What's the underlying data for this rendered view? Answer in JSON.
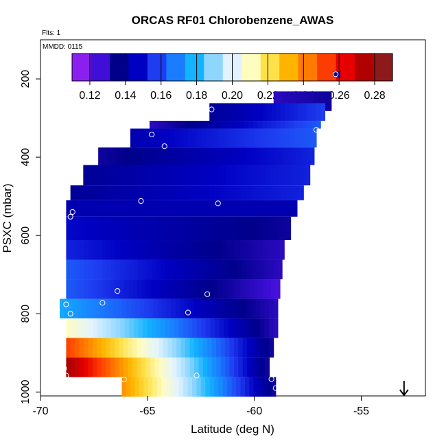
{
  "chart_data": {
    "type": "heatmap",
    "title": "ORCAS RF01 Chlorobenzene_AWAS",
    "subtitle_flights": "Flts: 1",
    "subtitle_date": "MMDD: 0115",
    "xlabel": "Latitude (deg N)",
    "ylabel": "PSXC (mbar)",
    "xlim": [
      -70,
      -52
    ],
    "ylim": [
      1010,
      100
    ],
    "x_ticks": [
      -70,
      -65,
      -60,
      -55
    ],
    "x_tick_labels": [
      "-70",
      "-65",
      "-60",
      "-55"
    ],
    "y_ticks": [
      200,
      400,
      600,
      800,
      1000
    ],
    "y_tick_labels": [
      "200",
      "400",
      "600",
      "800",
      "1000"
    ],
    "colorbar": {
      "range": [
        0.11,
        0.29
      ],
      "ticks": [
        0.12,
        0.14,
        0.16,
        0.18,
        0.2,
        0.22,
        0.24,
        0.26,
        0.28
      ],
      "tick_labels": [
        "0.12",
        "0.14",
        "0.16",
        "0.18",
        "0.20",
        "0.22",
        "0.24",
        "0.26",
        "0.28"
      ],
      "colors": [
        "#8b20ee",
        "#3f0fd8",
        "#00008b",
        "#0000c2",
        "#1e3cf0",
        "#1a7cff",
        "#12b3ff",
        "#8fd6ff",
        "#e2f3ff",
        "#fffcc0",
        "#ffe24a",
        "#ffb400",
        "#ff7a00",
        "#ff3c00",
        "#e60000",
        "#b10000",
        "#8c1a1a"
      ]
    },
    "bands": [
      {
        "p0": 180,
        "p1": 195,
        "lat0": -56.3,
        "lat1": -56.0,
        "v0": 0.13,
        "v1": 0.13
      },
      {
        "p0": 232,
        "p1": 282,
        "lat0": -59.1,
        "lat1": -56.4,
        "v0": 0.125,
        "v1": 0.13
      },
      {
        "p0": 262,
        "p1": 307,
        "lat0": -62.1,
        "lat1": -56.7,
        "v0": 0.135,
        "v1": 0.155
      },
      {
        "p0": 307,
        "p1": 327,
        "lat0": -64.9,
        "lat1": -56.9,
        "v0": 0.125,
        "v1": 0.16
      },
      {
        "p0": 327,
        "p1": 375,
        "lat0": -65.8,
        "lat1": -57.1,
        "v0": 0.14,
        "v1": 0.16
      },
      {
        "p0": 375,
        "p1": 420,
        "lat0": -67.3,
        "lat1": -57.2,
        "v0": 0.13,
        "v1": 0.15
      },
      {
        "p0": 420,
        "p1": 472,
        "lat0": -68.0,
        "lat1": -57.4,
        "v0": 0.135,
        "v1": 0.15
      },
      {
        "p0": 472,
        "p1": 510,
        "lat0": -68.6,
        "lat1": -57.7,
        "v0": 0.135,
        "v1": 0.15
      },
      {
        "p0": 510,
        "p1": 552,
        "lat0": -68.8,
        "lat1": -58.0,
        "v0": 0.14,
        "v1": 0.14
      },
      {
        "p0": 552,
        "p1": 612,
        "lat0": -68.8,
        "lat1": -58.3,
        "v0": 0.145,
        "v1": 0.13
      },
      {
        "p0": 612,
        "p1": 662,
        "lat0": -68.8,
        "lat1": -58.6,
        "v0": 0.15,
        "v1": 0.125
      },
      {
        "p0": 662,
        "p1": 712,
        "lat0": -68.8,
        "lat1": -58.7,
        "v0": 0.16,
        "v1": 0.125
      },
      {
        "p0": 712,
        "p1": 762,
        "lat0": -68.8,
        "lat1": -58.8,
        "v0": 0.16,
        "v1": 0.12
      },
      {
        "p0": 762,
        "p1": 812,
        "lat0": -69.1,
        "lat1": -58.9,
        "v0": 0.175,
        "v1": 0.125
      },
      {
        "p0": 812,
        "p1": 862,
        "lat0": -68.8,
        "lat1": -58.9,
        "v0": 0.21,
        "v1": 0.125
      },
      {
        "p0": 862,
        "p1": 912,
        "lat0": -68.8,
        "lat1": -59.1,
        "v0": 0.255,
        "v1": 0.13
      },
      {
        "p0": 912,
        "p1": 962,
        "lat0": -68.8,
        "lat1": -59.3,
        "v0": 0.28,
        "v1": 0.13
      },
      {
        "p0": 962,
        "p1": 1012,
        "lat0": -66.2,
        "lat1": -59.0,
        "v0": 0.24,
        "v1": 0.13
      }
    ],
    "points": [
      {
        "lat": -56.2,
        "p": 188
      },
      {
        "lat": -62.0,
        "p": 278
      },
      {
        "lat": -57.1,
        "p": 330
      },
      {
        "lat": -64.8,
        "p": 342
      },
      {
        "lat": -64.2,
        "p": 372
      },
      {
        "lat": -65.3,
        "p": 512
      },
      {
        "lat": -61.7,
        "p": 518
      },
      {
        "lat": -68.5,
        "p": 540
      },
      {
        "lat": -68.6,
        "p": 552
      },
      {
        "lat": -66.4,
        "p": 742
      },
      {
        "lat": -62.2,
        "p": 750
      },
      {
        "lat": -67.1,
        "p": 772
      },
      {
        "lat": -68.8,
        "p": 776
      },
      {
        "lat": -68.6,
        "p": 800
      },
      {
        "lat": -63.1,
        "p": 797
      },
      {
        "lat": -68.9,
        "p": 940
      },
      {
        "lat": -68.8,
        "p": 958
      },
      {
        "lat": -66.1,
        "p": 968
      },
      {
        "lat": -62.7,
        "p": 958
      },
      {
        "lat": -59.2,
        "p": 967
      },
      {
        "lat": -59.0,
        "p": 990
      }
    ],
    "arrow": {
      "lat": -53.0,
      "direction": "down"
    }
  }
}
